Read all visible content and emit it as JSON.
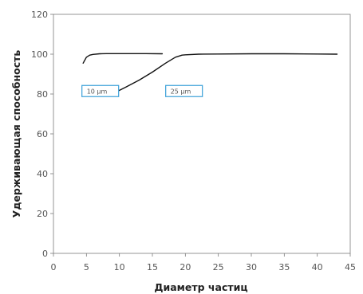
{
  "chart_data": {
    "type": "line",
    "title": "",
    "xlabel": "Диаметр частиц",
    "ylabel": "Удерживающая способность",
    "xlim": [
      0,
      45
    ],
    "ylim": [
      0,
      120
    ],
    "xticks": [
      "0",
      "5",
      "10",
      "15",
      "20",
      "25",
      "30",
      "35",
      "40",
      "45"
    ],
    "yticks": [
      "0",
      "20",
      "40",
      "60",
      "80",
      "100",
      "120"
    ],
    "grid": false,
    "legend": "none",
    "line_color": "#111111",
    "annotation_border_color": "#3aa0d8",
    "series": [
      {
        "x": [
          4.5,
          5,
          5.5,
          6,
          7,
          8,
          10,
          12,
          14,
          16.5
        ],
        "y": [
          95.5,
          98.5,
          99.5,
          99.9,
          100.2,
          100.3,
          100.3,
          100.3,
          100.3,
          100.2
        ]
      },
      {
        "x": [
          9.5,
          11,
          13,
          15,
          17,
          18.5,
          19.5,
          20,
          22,
          25,
          30,
          35,
          40,
          43
        ],
        "y": [
          81,
          83.5,
          87,
          91,
          95.5,
          98.5,
          99.5,
          99.7,
          100.0,
          100.1,
          100.2,
          100.2,
          100.1,
          100
        ]
      }
    ],
    "annotations": [
      {
        "text": "10 µm",
        "x": 7.1,
        "y": 81.5
      },
      {
        "text": "25 µm",
        "x": 19.8,
        "y": 81.5
      }
    ]
  }
}
